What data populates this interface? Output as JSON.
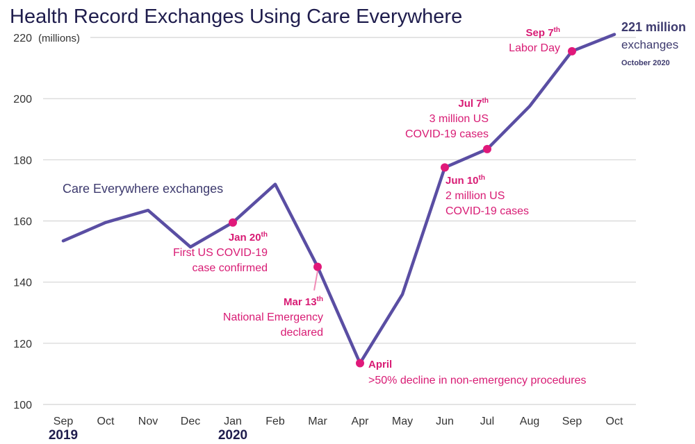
{
  "chart_data": {
    "type": "line",
    "title": "Health Record Exchanges Using Care Everywhere",
    "unit_label": "(millions)",
    "series_label": "Care Everywhere exchanges",
    "categories": [
      "Sep",
      "Oct",
      "Nov",
      "Dec",
      "Jan",
      "Feb",
      "Mar",
      "Apr",
      "May",
      "Jun",
      "Jul",
      "Aug",
      "Sep",
      "Oct"
    ],
    "year_labels": [
      {
        "index": 0,
        "text": "2019"
      },
      {
        "index": 4,
        "text": "2020"
      }
    ],
    "series": [
      {
        "values": [
          153.5,
          159.5,
          163.5,
          151.5,
          159.5,
          172,
          145,
          113.5,
          136,
          177.5,
          183.5,
          197.5,
          215.5,
          221
        ]
      }
    ],
    "ylim": [
      100,
      220
    ],
    "yticks": [
      100,
      120,
      140,
      160,
      180,
      200,
      220
    ],
    "grid": true,
    "line_color": "#5a4ea3",
    "marker_color": "#e0197a",
    "annotations": [
      {
        "index": 4,
        "head": "Jan 20",
        "sup": "th",
        "lines": [
          "First US COVID-19",
          "case confirmed"
        ]
      },
      {
        "index": 6,
        "head": "Mar 13",
        "sup": "th",
        "lines": [
          "National Emergency",
          "declared"
        ]
      },
      {
        "index": 7,
        "head": "April",
        "sup": "",
        "lines": [
          ">50% decline in non-emergency procedures"
        ]
      },
      {
        "index": 9,
        "head": "Jun 10",
        "sup": "th",
        "lines": [
          "2 million US",
          "COVID-19 cases"
        ]
      },
      {
        "index": 10,
        "head": "Jul 7",
        "sup": "th",
        "lines": [
          "3 million US",
          "COVID-19 cases"
        ]
      },
      {
        "index": 12,
        "head": "Sep 7",
        "sup": "th",
        "lines": [
          "Labor Day"
        ]
      }
    ],
    "final_label": {
      "big": "221 million",
      "text": "exchanges",
      "small": "October 2020"
    }
  }
}
